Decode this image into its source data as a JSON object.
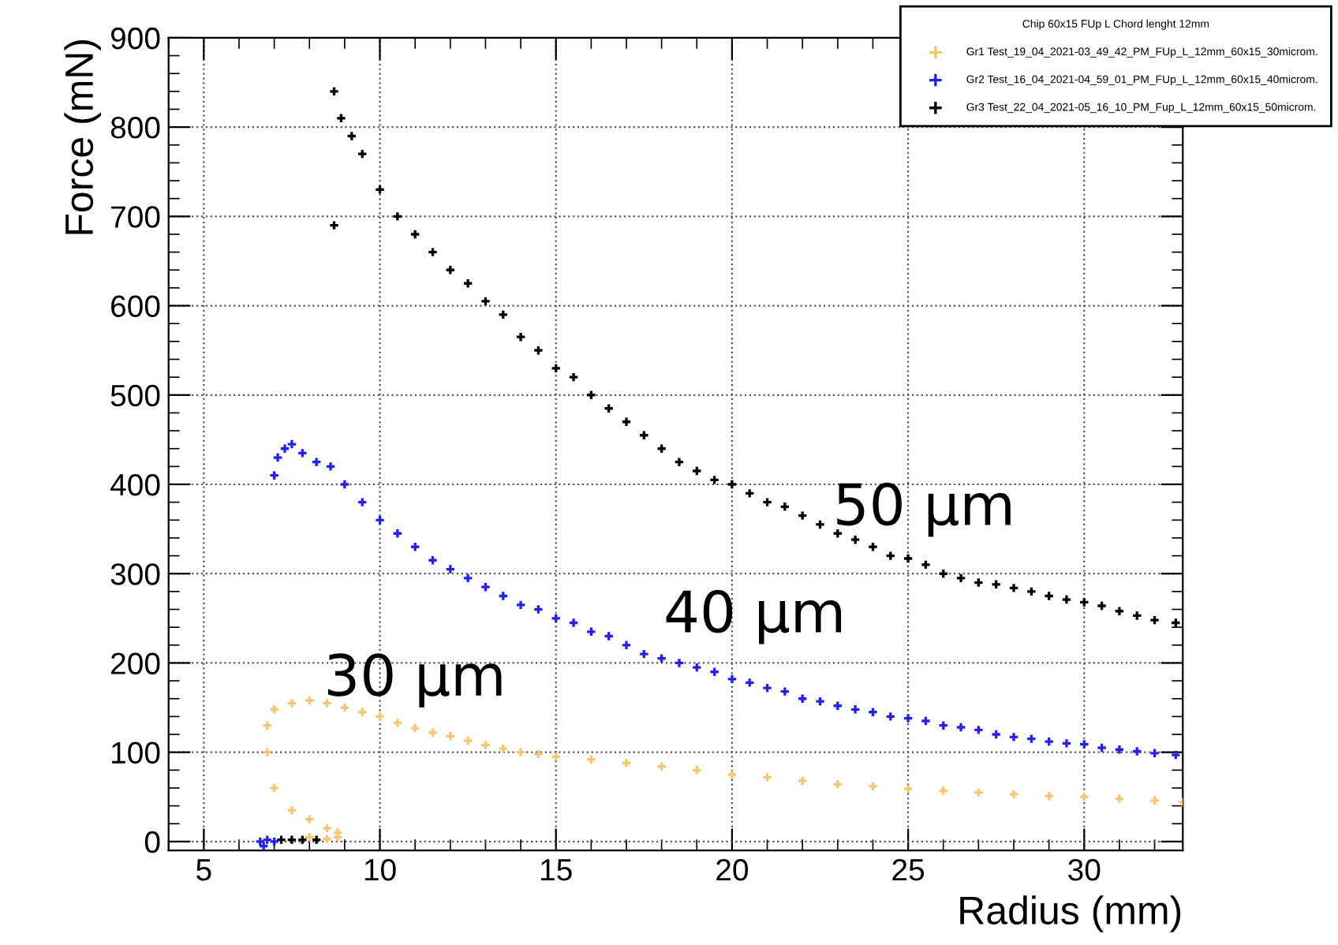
{
  "chart_data": {
    "type": "scatter",
    "xlabel": "Radius (mm)",
    "ylabel": "Force (mN)",
    "legend_title": "Chip 60x15 FUp L Chord lenght 12mm",
    "xlim": [
      4,
      32.8
    ],
    "ylim": [
      -10,
      900
    ],
    "xticks": [
      5,
      10,
      15,
      20,
      25,
      30
    ],
    "yticks": [
      0,
      100,
      200,
      300,
      400,
      500,
      600,
      700,
      800,
      900
    ],
    "grid": true,
    "legend": "top right",
    "marker": "cross",
    "series": [
      {
        "name": "Gr1 Test_19_04_2021-03_49_42_PM_FUp_L_12mm_60x15_30microm.",
        "color": "#f8c66e",
        "x": [
          8.8,
          8.5,
          8.0,
          7.5,
          7.0,
          6.8,
          6.8,
          7.0,
          7.5,
          8.0,
          8.5,
          9.0,
          9.5,
          10,
          10.5,
          11,
          11.5,
          12,
          12.5,
          13,
          13.5,
          14,
          14.5,
          15,
          16,
          17,
          18,
          19,
          20,
          21,
          22,
          23,
          24,
          25,
          26,
          27,
          28,
          29,
          30,
          31,
          32,
          32.8,
          8.0,
          8.5,
          8.8
        ],
        "values": [
          10,
          15,
          25,
          35,
          60,
          100,
          130,
          148,
          155,
          158,
          155,
          150,
          145,
          140,
          133,
          127,
          122,
          118,
          113,
          108,
          104,
          100,
          98,
          95,
          92,
          88,
          84,
          80,
          75,
          72,
          68,
          64,
          62,
          59,
          57,
          55,
          53,
          51,
          50,
          48,
          46,
          44,
          5,
          3,
          5
        ]
      },
      {
        "name": "Gr2 Test_16_04_2021-04_59_01_PM_FUp_L_12mm_60x15_40microm.",
        "color": "#2222ee",
        "x": [
          7.0,
          7.1,
          7.3,
          7.5,
          7.8,
          8.2,
          8.6,
          9,
          9.5,
          10,
          10.5,
          11,
          11.5,
          12,
          12.5,
          13,
          13.5,
          14,
          14.5,
          15,
          15.5,
          16,
          16.5,
          17,
          17.5,
          18,
          18.5,
          19,
          19.5,
          20,
          20.5,
          21,
          21.5,
          22,
          22.5,
          23,
          23.5,
          24,
          24.5,
          25,
          25.5,
          26,
          26.5,
          27,
          27.5,
          28,
          28.5,
          29,
          29.5,
          30,
          30.5,
          31,
          31.5,
          32,
          32.6,
          6.6,
          6.8,
          7.0,
          6.7
        ],
        "values": [
          410,
          430,
          440,
          445,
          435,
          425,
          420,
          400,
          380,
          360,
          345,
          330,
          315,
          305,
          295,
          285,
          275,
          265,
          260,
          250,
          245,
          235,
          230,
          220,
          210,
          205,
          200,
          195,
          190,
          182,
          178,
          172,
          168,
          160,
          157,
          152,
          148,
          145,
          140,
          138,
          135,
          130,
          128,
          125,
          120,
          117,
          115,
          112,
          110,
          109,
          105,
          103,
          101,
          99,
          97,
          0,
          2,
          0,
          -5
        ]
      },
      {
        "name": "Gr3 Test_22_04_2021-05_16_10_PM_Fup_L_12mm_60x15_50microm.",
        "color": "#000000",
        "x": [
          8.7,
          8.7,
          8.9,
          9.2,
          9.5,
          10,
          10.5,
          11,
          11.5,
          12,
          12.5,
          13,
          13.5,
          14,
          14.5,
          15,
          15.5,
          16,
          16.5,
          17,
          17.5,
          18,
          18.5,
          19,
          19.5,
          20,
          20.5,
          21,
          21.5,
          22,
          22.5,
          23,
          23.5,
          24,
          24.5,
          25,
          25.5,
          26,
          26.5,
          27,
          27.5,
          28,
          28.5,
          29,
          29.5,
          30,
          30.5,
          31,
          31.5,
          32,
          32.6,
          7.2,
          7.5,
          7.8,
          8.2
        ],
        "values": [
          840,
          690,
          810,
          790,
          770,
          730,
          700,
          680,
          660,
          640,
          625,
          605,
          590,
          565,
          550,
          530,
          520,
          500,
          485,
          470,
          455,
          440,
          425,
          415,
          405,
          400,
          390,
          380,
          375,
          365,
          355,
          345,
          338,
          330,
          320,
          317,
          310,
          300,
          295,
          290,
          288,
          284,
          280,
          275,
          271,
          268,
          264,
          258,
          253,
          248,
          245,
          2,
          2,
          2,
          2
        ]
      }
    ],
    "annotations": [
      "50 µm",
      "40 µm",
      "30 µm"
    ]
  }
}
